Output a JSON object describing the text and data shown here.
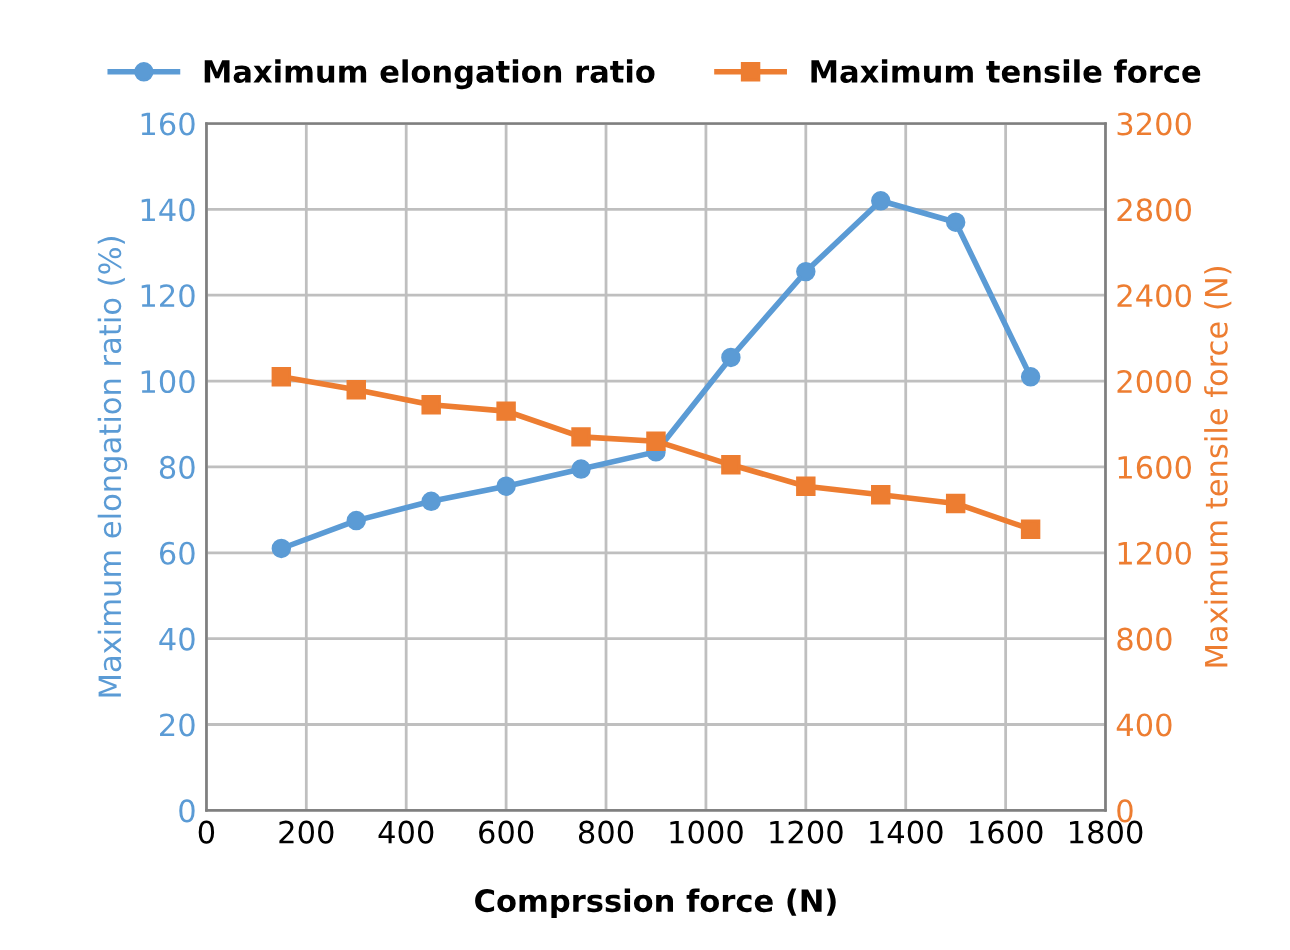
{
  "chart_data": {
    "type": "line",
    "xlabel": "Comprssion force (N)",
    "ylabel": "Maximum elongation ratio (%)",
    "y2label": "Maximum tensile force (N)",
    "x": [
      150,
      300,
      450,
      600,
      750,
      900,
      1050,
      1200,
      1350,
      1500,
      1650
    ],
    "series": [
      {
        "name": "Maximum elongation ratio",
        "color": "#5b9bd5",
        "marker": "circle",
        "values": [
          61,
          67.5,
          72,
          75.5,
          79.5,
          83.5,
          105.5,
          125.5,
          142,
          137,
          101
        ]
      },
      {
        "name": "Maximum tensile force",
        "color": "#ed7d31",
        "marker": "square",
        "axis": "y2",
        "values": [
          2020,
          1960,
          1890,
          1860,
          1740,
          1720,
          1610,
          1510,
          1470,
          1430,
          1310
        ]
      }
    ],
    "xlim": [
      0,
      1800
    ],
    "xticks": [
      0,
      200,
      400,
      600,
      800,
      1000,
      1200,
      1400,
      1600,
      1800
    ],
    "ylim": [
      0,
      160
    ],
    "yticks": [
      0,
      20,
      40,
      60,
      80,
      100,
      120,
      140,
      160
    ],
    "y2lim": [
      0,
      3200
    ],
    "y2ticks": [
      0,
      400,
      800,
      1200,
      1600,
      2000,
      2400,
      2800,
      3200
    ],
    "grid": true,
    "legend": "top",
    "line_style": "solid"
  }
}
